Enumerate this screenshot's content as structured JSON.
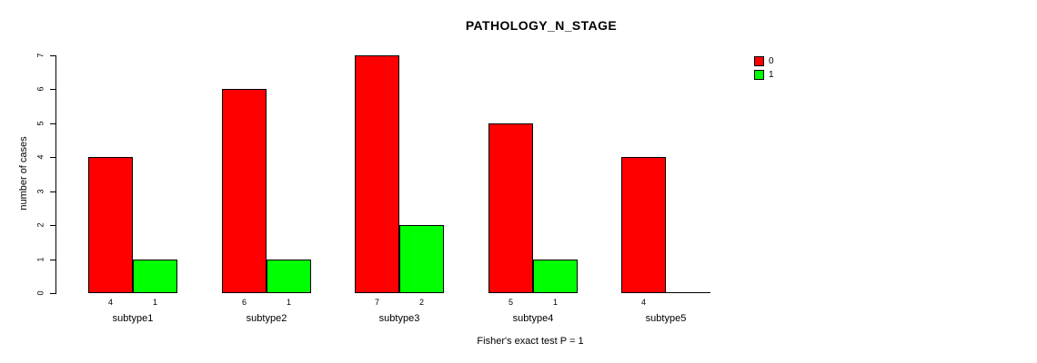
{
  "chart_data": {
    "type": "bar",
    "title": "PATHOLOGY_N_STAGE",
    "xlabel": "Fisher's exact test P = 1",
    "ylabel": "number of cases",
    "categories": [
      "subtype1",
      "subtype2",
      "subtype3",
      "subtype4",
      "subtype5"
    ],
    "series": [
      {
        "name": "0",
        "color": "#FF0000",
        "values": [
          4,
          6,
          7,
          5,
          4
        ]
      },
      {
        "name": "1",
        "color": "#00FF00",
        "values": [
          1,
          1,
          2,
          1,
          0
        ]
      }
    ],
    "bar_value_labels": [
      [
        "4",
        "1"
      ],
      [
        "6",
        "1"
      ],
      [
        "7",
        "2"
      ],
      [
        "5",
        "1"
      ],
      [
        "4",
        ""
      ]
    ],
    "ylim": [
      0,
      7
    ],
    "yticks": [
      0,
      1,
      2,
      3,
      4,
      5,
      6,
      7
    ],
    "legend_position": "top-right",
    "grid": false,
    "axis_color": "#000000",
    "background_color": "#FFFFFF"
  }
}
